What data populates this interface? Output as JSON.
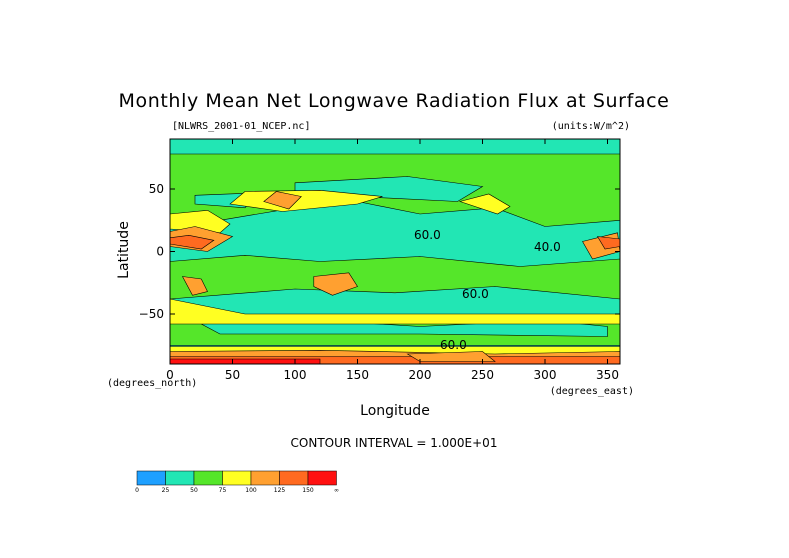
{
  "chart_data": {
    "type": "heatmap",
    "title": "Monthly Mean Net Longwave Radiation Flux at Surface",
    "file_label": "[NLWRS_2001-01_NCEP.nc]",
    "units_label": "(units:W/m^2)",
    "xlabel": "Longitude",
    "ylabel": "Latitude",
    "x_units": "(degrees_east)",
    "y_units": "(degrees_north)",
    "xlim": [
      0,
      360
    ],
    "ylim": [
      -90,
      90
    ],
    "x_ticks": [
      "0",
      "50",
      "100",
      "150",
      "200",
      "250",
      "300",
      "350"
    ],
    "y_ticks": [
      "50",
      "0",
      "−50"
    ],
    "contour_interval_text": "CONTOUR INTERVAL = 1.000E+01",
    "contour_labels": [
      "60.0",
      "60.0",
      "40.0",
      "60.0"
    ],
    "colorbar": {
      "colors": [
        "#1ea0ff",
        "#22e6b4",
        "#55e62a",
        "#ffff22",
        "#ffa030",
        "#ff6a20",
        "#ff1010"
      ],
      "tick_labels": [
        "0",
        "25",
        "50",
        "75",
        "100",
        "125",
        "150",
        "∞"
      ]
    },
    "background_color": "#22e6b4"
  }
}
